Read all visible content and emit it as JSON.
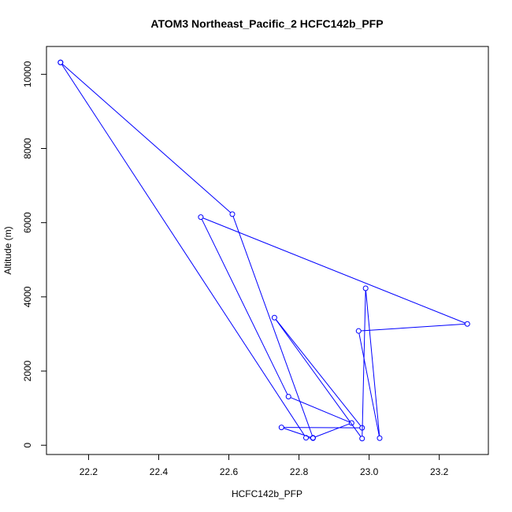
{
  "chart_data": {
    "type": "line",
    "title": "ATOM3 Northeast_Pacific_2 HCFC142b_PFP",
    "xlabel": "HCFC142b_PFP",
    "ylabel": "Altitude (m)",
    "xlim": [
      22.08,
      23.34
    ],
    "ylim": [
      -250,
      10750
    ],
    "x_ticks": [
      22.2,
      22.4,
      22.6,
      22.8,
      23.0,
      23.2
    ],
    "x_tick_labels": [
      "22.2",
      "22.4",
      "22.6",
      "22.8",
      "23.0",
      "23.2"
    ],
    "y_ticks": [
      0,
      2000,
      4000,
      6000,
      8000,
      10000
    ],
    "y_tick_labels": [
      "0",
      "2000",
      "4000",
      "6000",
      "8000",
      "10000"
    ],
    "grid": false,
    "legend": "none",
    "series": [
      {
        "color": "#0000ff",
        "marker": "open-circle",
        "points": [
          {
            "x": 22.12,
            "y": 10320
          },
          {
            "x": 22.61,
            "y": 6230
          },
          {
            "x": 22.84,
            "y": 200
          },
          {
            "x": 22.95,
            "y": 600
          },
          {
            "x": 22.77,
            "y": 1310
          },
          {
            "x": 22.52,
            "y": 6150
          },
          {
            "x": 23.28,
            "y": 3270
          },
          {
            "x": 22.97,
            "y": 3080
          },
          {
            "x": 23.03,
            "y": 190
          },
          {
            "x": 22.99,
            "y": 4230
          },
          {
            "x": 22.98,
            "y": 180
          },
          {
            "x": 22.73,
            "y": 3440
          },
          {
            "x": 22.98,
            "y": 470
          },
          {
            "x": 22.75,
            "y": 480
          },
          {
            "x": 22.84,
            "y": 190
          },
          {
            "x": 22.82,
            "y": 200
          },
          {
            "x": 22.12,
            "y": 10320
          }
        ]
      }
    ]
  }
}
